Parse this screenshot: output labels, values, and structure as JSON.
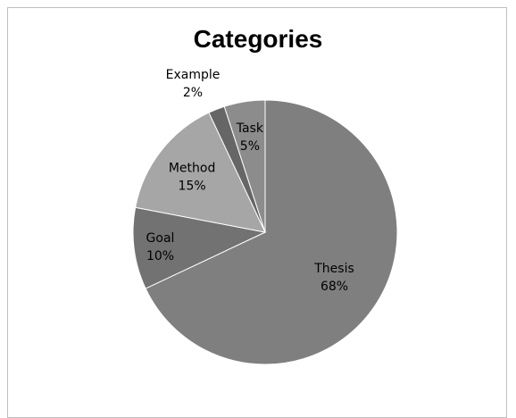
{
  "chart_data": {
    "type": "pie",
    "title": "Categories",
    "slices": [
      {
        "name": "Thesis",
        "value": 68,
        "label": "68%",
        "color": "#7f7f7f"
      },
      {
        "name": "Goal",
        "value": 10,
        "label": "10%",
        "color": "#727272"
      },
      {
        "name": "Method",
        "value": 15,
        "label": "15%",
        "color": "#a6a6a6"
      },
      {
        "name": "Example",
        "value": 2,
        "label": "2%",
        "color": "#666666"
      },
      {
        "name": "Task",
        "value": 5,
        "label": "5%",
        "color": "#8c8c8c"
      }
    ],
    "start": "12 o'clock",
    "direction": "clockwise"
  }
}
